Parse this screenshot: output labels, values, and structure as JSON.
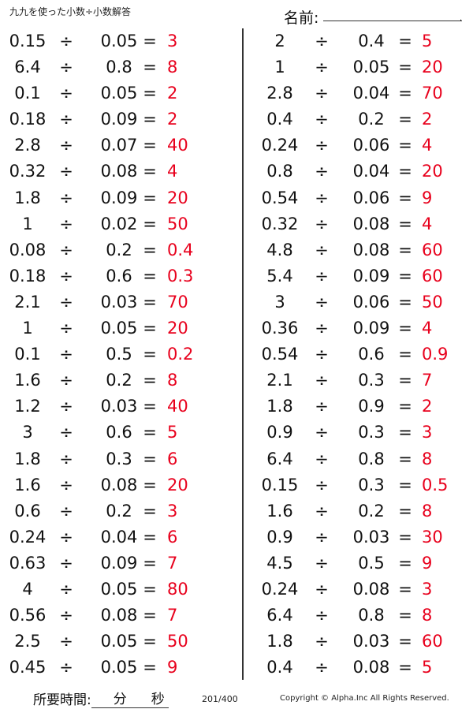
{
  "header": {
    "title": "九九を使った小数÷小数解答",
    "name_label": "名前:"
  },
  "symbols": {
    "divide": "÷",
    "equals": "="
  },
  "left_problems": [
    {
      "a": "0.15",
      "b": "0.05",
      "ans": "3"
    },
    {
      "a": "6.4",
      "b": "0.8",
      "ans": "8"
    },
    {
      "a": "0.1",
      "b": "0.05",
      "ans": "2"
    },
    {
      "a": "0.18",
      "b": "0.09",
      "ans": "2"
    },
    {
      "a": "2.8",
      "b": "0.07",
      "ans": "40"
    },
    {
      "a": "0.32",
      "b": "0.08",
      "ans": "4"
    },
    {
      "a": "1.8",
      "b": "0.09",
      "ans": "20"
    },
    {
      "a": "1",
      "b": "0.02",
      "ans": "50"
    },
    {
      "a": "0.08",
      "b": "0.2",
      "ans": "0.4"
    },
    {
      "a": "0.18",
      "b": "0.6",
      "ans": "0.3"
    },
    {
      "a": "2.1",
      "b": "0.03",
      "ans": "70"
    },
    {
      "a": "1",
      "b": "0.05",
      "ans": "20"
    },
    {
      "a": "0.1",
      "b": "0.5",
      "ans": "0.2"
    },
    {
      "a": "1.6",
      "b": "0.2",
      "ans": "8"
    },
    {
      "a": "1.2",
      "b": "0.03",
      "ans": "40"
    },
    {
      "a": "3",
      "b": "0.6",
      "ans": "5"
    },
    {
      "a": "1.8",
      "b": "0.3",
      "ans": "6"
    },
    {
      "a": "1.6",
      "b": "0.08",
      "ans": "20"
    },
    {
      "a": "0.6",
      "b": "0.2",
      "ans": "3"
    },
    {
      "a": "0.24",
      "b": "0.04",
      "ans": "6"
    },
    {
      "a": "0.63",
      "b": "0.09",
      "ans": "7"
    },
    {
      "a": "4",
      "b": "0.05",
      "ans": "80"
    },
    {
      "a": "0.56",
      "b": "0.08",
      "ans": "7"
    },
    {
      "a": "2.5",
      "b": "0.05",
      "ans": "50"
    },
    {
      "a": "0.45",
      "b": "0.05",
      "ans": "9"
    }
  ],
  "right_problems": [
    {
      "a": "2",
      "b": "0.4",
      "ans": "5"
    },
    {
      "a": "1",
      "b": "0.05",
      "ans": "20"
    },
    {
      "a": "2.8",
      "b": "0.04",
      "ans": "70"
    },
    {
      "a": "0.4",
      "b": "0.2",
      "ans": "2"
    },
    {
      "a": "0.24",
      "b": "0.06",
      "ans": "4"
    },
    {
      "a": "0.8",
      "b": "0.04",
      "ans": "20"
    },
    {
      "a": "0.54",
      "b": "0.06",
      "ans": "9"
    },
    {
      "a": "0.32",
      "b": "0.08",
      "ans": "4"
    },
    {
      "a": "4.8",
      "b": "0.08",
      "ans": "60"
    },
    {
      "a": "5.4",
      "b": "0.09",
      "ans": "60"
    },
    {
      "a": "3",
      "b": "0.06",
      "ans": "50"
    },
    {
      "a": "0.36",
      "b": "0.09",
      "ans": "4"
    },
    {
      "a": "0.54",
      "b": "0.6",
      "ans": "0.9"
    },
    {
      "a": "2.1",
      "b": "0.3",
      "ans": "7"
    },
    {
      "a": "1.8",
      "b": "0.9",
      "ans": "2"
    },
    {
      "a": "0.9",
      "b": "0.3",
      "ans": "3"
    },
    {
      "a": "6.4",
      "b": "0.8",
      "ans": "8"
    },
    {
      "a": "0.15",
      "b": "0.3",
      "ans": "0.5"
    },
    {
      "a": "1.6",
      "b": "0.2",
      "ans": "8"
    },
    {
      "a": "0.9",
      "b": "0.03",
      "ans": "30"
    },
    {
      "a": "4.5",
      "b": "0.5",
      "ans": "9"
    },
    {
      "a": "0.24",
      "b": "0.08",
      "ans": "3"
    },
    {
      "a": "6.4",
      "b": "0.8",
      "ans": "8"
    },
    {
      "a": "1.8",
      "b": "0.03",
      "ans": "60"
    },
    {
      "a": "0.4",
      "b": "0.08",
      "ans": "5"
    }
  ],
  "footer": {
    "time_label": "所要時間:",
    "minutes_unit": "分",
    "seconds_unit": "秒",
    "page": "201/400",
    "copyright": "Copyright © Alpha.Inc All Rights Reserved."
  },
  "colors": {
    "answer": "#e8001c",
    "text": "#111111"
  }
}
